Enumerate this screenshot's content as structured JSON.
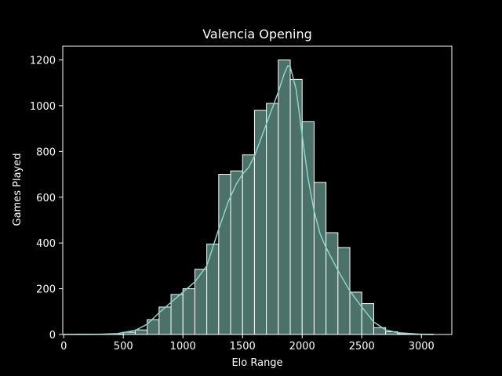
{
  "chart_data": {
    "type": "bar",
    "title": "Valencia Opening",
    "xlabel": "Elo Range",
    "ylabel": "Games Played",
    "xlim": [
      -8,
      3255
    ],
    "ylim": [
      0,
      1260
    ],
    "xticks": [
      0,
      500,
      1000,
      1500,
      2000,
      2500,
      3000
    ],
    "yticks": [
      0,
      200,
      400,
      600,
      800,
      1000,
      1200
    ],
    "bin_width": 100,
    "bin_starts": [
      100,
      200,
      300,
      400,
      500,
      600,
      700,
      800,
      900,
      1000,
      1100,
      1200,
      1300,
      1400,
      1500,
      1600,
      1700,
      1800,
      1900,
      2000,
      2100,
      2200,
      2300,
      2400,
      2500,
      2600,
      2700,
      2800,
      2900,
      3000
    ],
    "values": [
      1,
      1,
      1,
      2,
      10,
      20,
      65,
      120,
      175,
      200,
      285,
      395,
      700,
      715,
      785,
      980,
      1010,
      1200,
      1115,
      930,
      665,
      445,
      380,
      185,
      135,
      30,
      12,
      3,
      1,
      1
    ],
    "kde_x": [
      0,
      300,
      450,
      600,
      700,
      800,
      900,
      1000,
      1100,
      1200,
      1300,
      1380,
      1450,
      1500,
      1550,
      1600,
      1650,
      1700,
      1750,
      1800,
      1850,
      1880,
      1900,
      1950,
      2000,
      2050,
      2100,
      2150,
      2200,
      2250,
      2300,
      2400,
      2500,
      2600,
      2700,
      2800,
      3000,
      3100
    ],
    "kde_y": [
      0,
      1,
      4,
      18,
      45,
      95,
      140,
      185,
      230,
      300,
      460,
      580,
      660,
      700,
      730,
      780,
      850,
      920,
      990,
      1060,
      1140,
      1175,
      1170,
      1070,
      870,
      680,
      540,
      440,
      380,
      330,
      280,
      190,
      120,
      55,
      20,
      8,
      1,
      0
    ],
    "grid": false,
    "colors": {
      "background": "#000000",
      "bar_fill": "#4c7168",
      "bar_edge": "#ffffff",
      "kde_line": "#8dd3c7",
      "axes": "#ffffff",
      "text": "#ffffff"
    }
  }
}
